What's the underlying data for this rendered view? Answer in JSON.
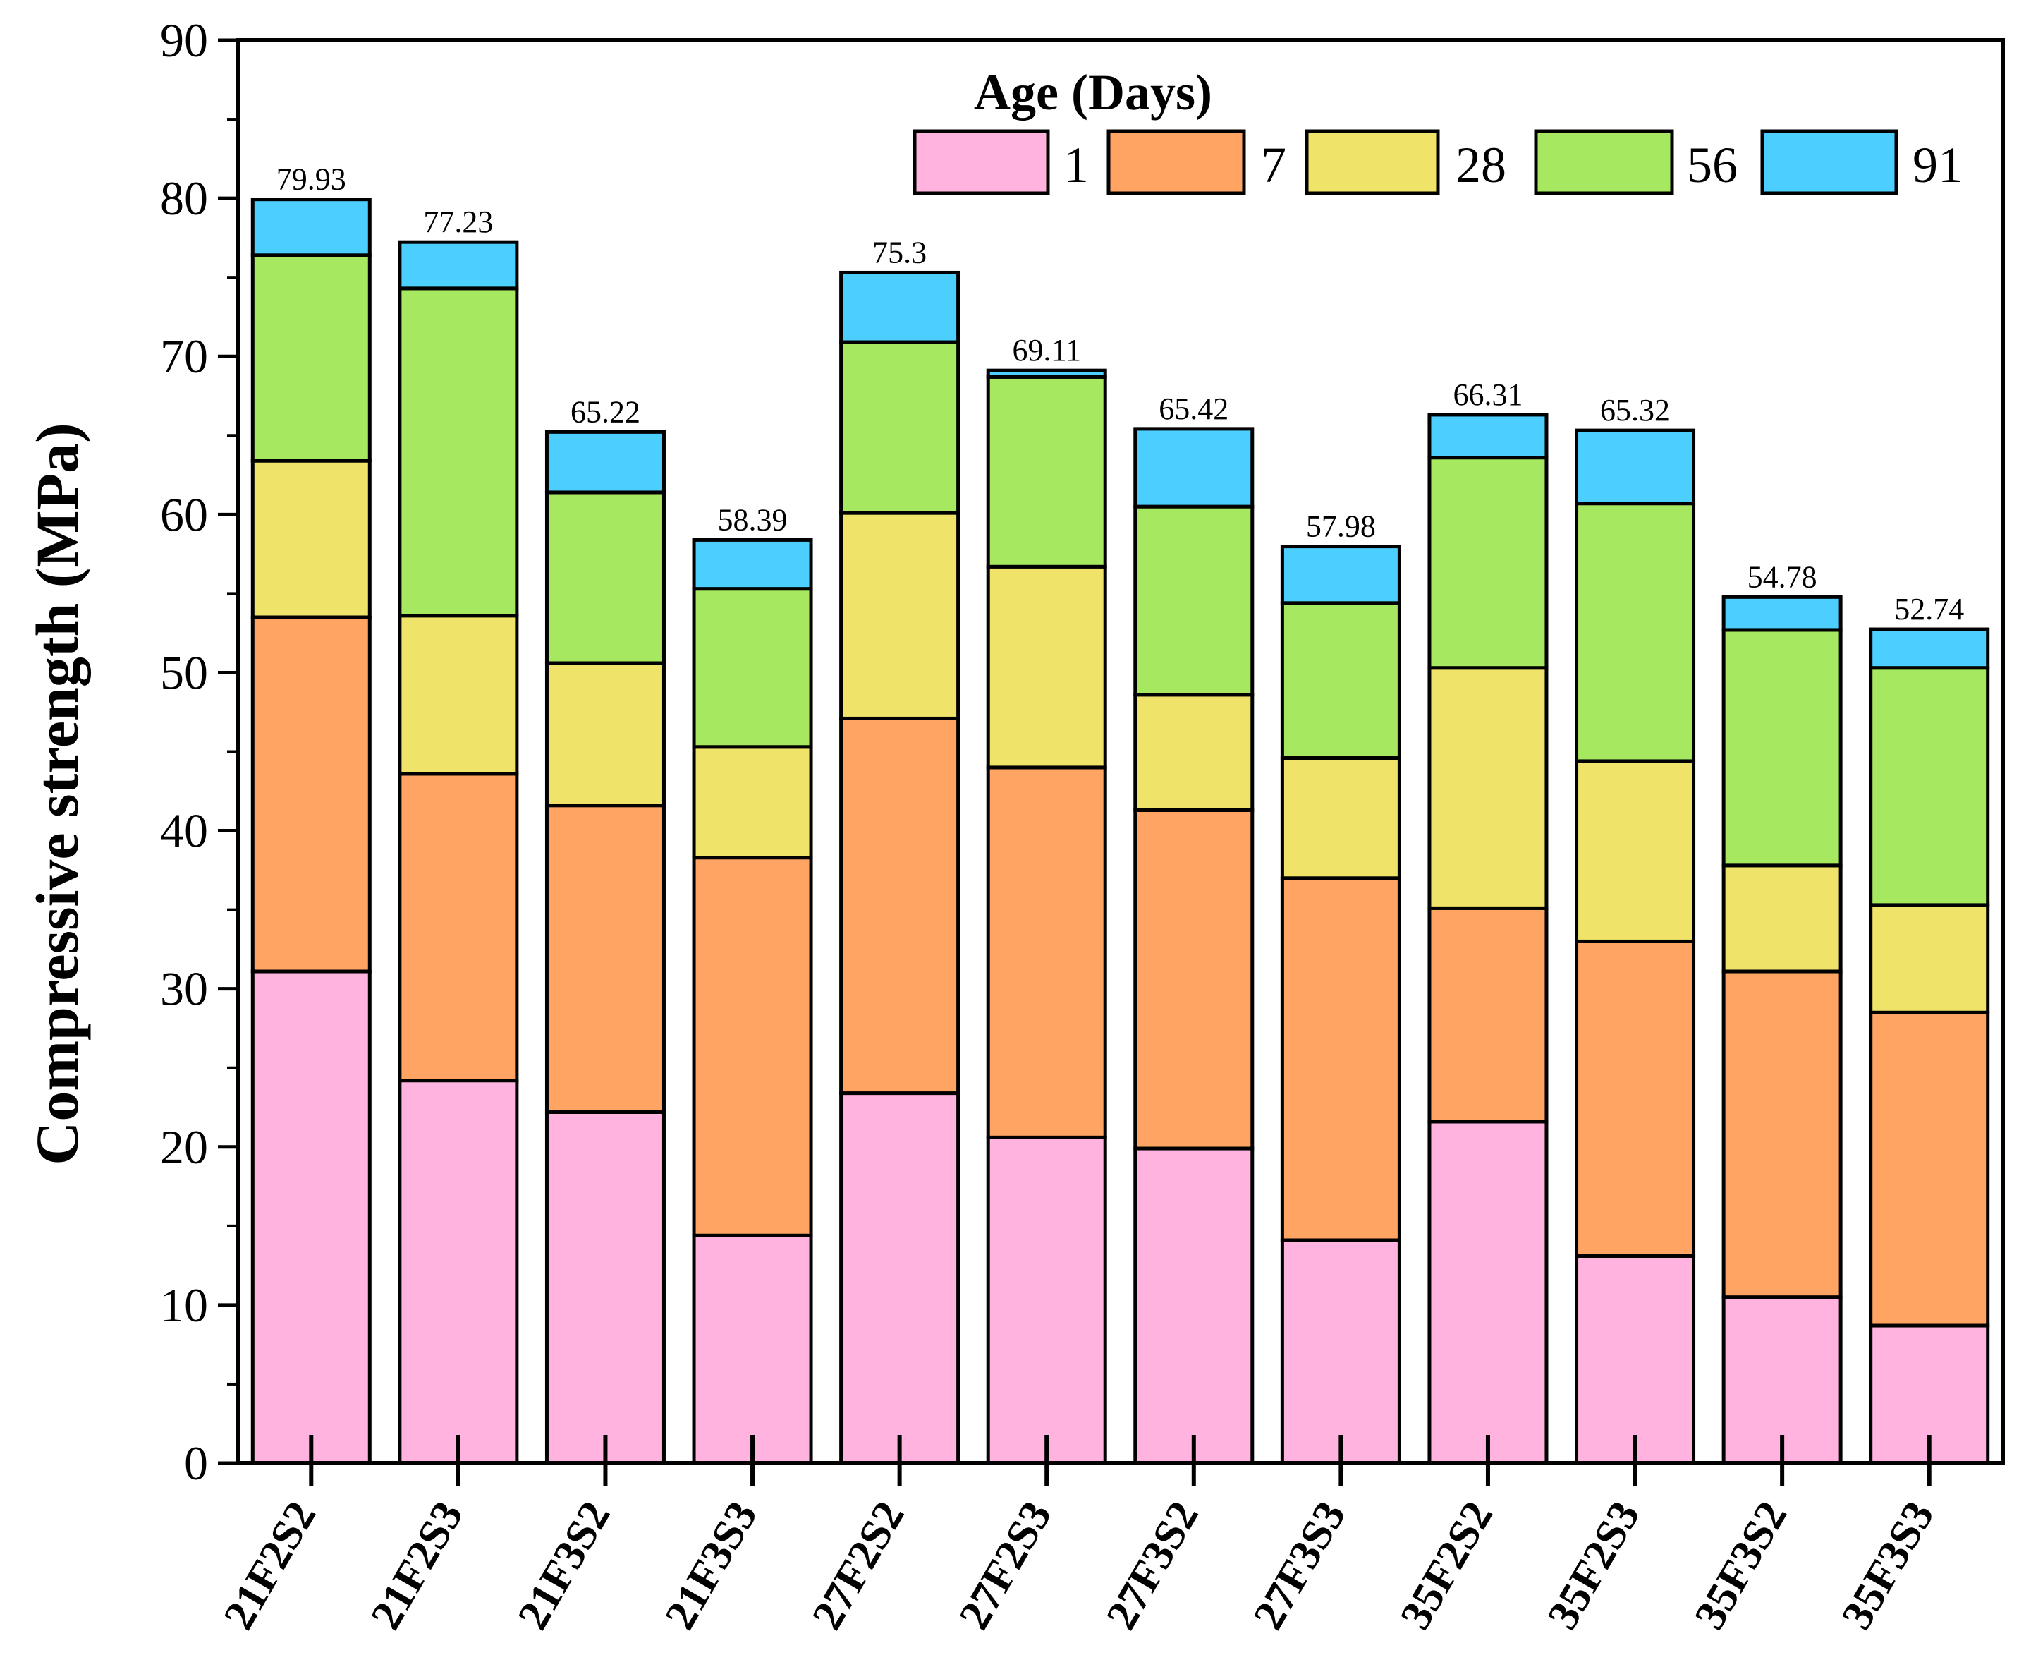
{
  "chart_data": {
    "type": "bar",
    "stacked": true,
    "title": "",
    "xlabel": "",
    "ylabel": "Compressive strength (MPa)",
    "ylim": [
      0,
      90
    ],
    "yticks": [
      0,
      10,
      20,
      30,
      40,
      50,
      60,
      70,
      80,
      90
    ],
    "grid": false,
    "legend": {
      "title": "Age (Days)",
      "placement": "top-right"
    },
    "categories": [
      "21F2S2",
      "21F2S3",
      "21F3S2",
      "21F3S3",
      "27F2S2",
      "27F2S3",
      "27F3S2",
      "27F3S3",
      "35F2S2",
      "35F2S3",
      "35F3S2",
      "35F3S3"
    ],
    "series": [
      {
        "name": "1",
        "color": "#FFB3DE",
        "values": [
          31.1,
          24.2,
          22.2,
          14.4,
          23.4,
          20.6,
          19.9,
          14.1,
          21.6,
          13.1,
          10.5,
          8.7
        ]
      },
      {
        "name": "7",
        "color": "#FFA463",
        "values": [
          22.4,
          19.4,
          19.4,
          23.9,
          23.7,
          23.4,
          21.4,
          22.9,
          13.5,
          19.9,
          20.6,
          19.8
        ]
      },
      {
        "name": "28",
        "color": "#F0E36A",
        "values": [
          9.9,
          10.0,
          9.0,
          7.0,
          13.0,
          12.7,
          7.3,
          7.6,
          15.2,
          11.4,
          6.7,
          6.8
        ]
      },
      {
        "name": "56",
        "color": "#A6E85F",
        "values": [
          13.0,
          20.7,
          10.8,
          10.0,
          10.8,
          12.0,
          11.9,
          9.8,
          13.3,
          16.3,
          14.9,
          15.0
        ]
      },
      {
        "name": "91",
        "color": "#4CCFFF",
        "values": [
          3.53,
          2.93,
          3.82,
          3.09,
          4.4,
          0.41,
          4.92,
          3.58,
          2.71,
          4.62,
          2.08,
          2.44
        ]
      }
    ],
    "totals": [
      "79.93",
      "77.23",
      "65.22",
      "58.39",
      "75.3",
      "69.11",
      "65.42",
      "57.98",
      "66.31",
      "65.32",
      "54.78",
      "52.74"
    ]
  }
}
